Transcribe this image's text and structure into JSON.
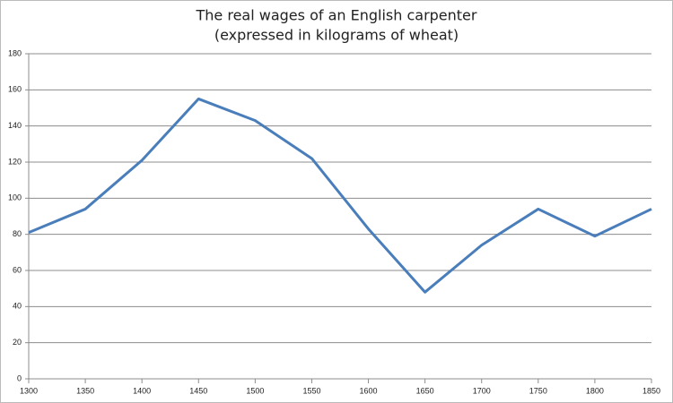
{
  "chart_data": {
    "type": "line",
    "title": "The real wages of an English carpenter",
    "subtitle": "(expressed in kilograms of wheat)",
    "x": [
      1300,
      1350,
      1400,
      1450,
      1500,
      1550,
      1600,
      1650,
      1700,
      1750,
      1800,
      1850
    ],
    "series": [
      {
        "color": "#4a7ebb",
        "values": [
          81,
          94,
          121,
          155,
          143,
          122,
          83,
          48,
          74,
          94,
          79,
          94
        ]
      }
    ],
    "xlim": [
      1300,
      1850
    ],
    "xticks": [
      1300,
      1350,
      1400,
      1450,
      1500,
      1550,
      1600,
      1650,
      1700,
      1750,
      1800,
      1850
    ],
    "ylim": [
      0,
      180
    ],
    "yticks": [
      0,
      20,
      40,
      60,
      80,
      100,
      120,
      140,
      160,
      180
    ],
    "grid": true
  }
}
